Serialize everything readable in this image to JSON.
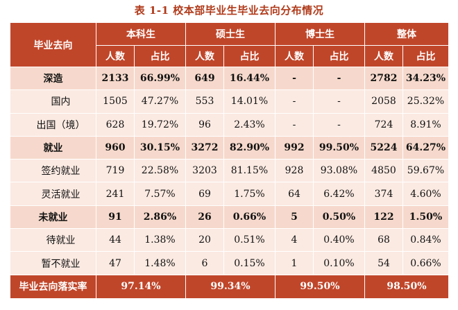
{
  "caption": "表 1-1 校本部毕业生毕业去向分布情况",
  "header": {
    "row_label": "毕业去向",
    "groups": [
      "本科生",
      "硕士生",
      "博士生",
      "整体"
    ],
    "sub": [
      "人数",
      "占比"
    ]
  },
  "rows": [
    {
      "label": "深造",
      "level": "major",
      "values": [
        "2133",
        "66.99%",
        "649",
        "16.44%",
        "-",
        "-",
        "2782",
        "34.23%"
      ]
    },
    {
      "label": "国内",
      "level": "minor",
      "values": [
        "1505",
        "47.27%",
        "553",
        "14.01%",
        "-",
        "-",
        "2058",
        "25.32%"
      ]
    },
    {
      "label": "出国（境）",
      "level": "minor",
      "values": [
        "628",
        "19.72%",
        "96",
        "2.43%",
        "-",
        "-",
        "724",
        "8.91%"
      ]
    },
    {
      "label": "就业",
      "level": "major",
      "values": [
        "960",
        "30.15%",
        "3272",
        "82.90%",
        "992",
        "99.50%",
        "5224",
        "64.27%"
      ]
    },
    {
      "label": "签约就业",
      "level": "minor",
      "values": [
        "719",
        "22.58%",
        "3203",
        "81.15%",
        "928",
        "93.08%",
        "4850",
        "59.67%"
      ]
    },
    {
      "label": "灵活就业",
      "level": "minor",
      "values": [
        "241",
        "7.57%",
        "69",
        "1.75%",
        "64",
        "6.42%",
        "374",
        "4.60%"
      ]
    },
    {
      "label": "未就业",
      "level": "major",
      "values": [
        "91",
        "2.86%",
        "26",
        "0.66%",
        "5",
        "0.50%",
        "122",
        "1.50%"
      ]
    },
    {
      "label": "待就业",
      "level": "minor",
      "values": [
        "44",
        "1.38%",
        "20",
        "0.51%",
        "4",
        "0.40%",
        "68",
        "0.84%"
      ]
    },
    {
      "label": "暂不就业",
      "level": "minor",
      "values": [
        "47",
        "1.48%",
        "6",
        "0.15%",
        "1",
        "0.10%",
        "54",
        "0.66%"
      ]
    }
  ],
  "footer": {
    "label": "毕业去向落实率",
    "values": [
      "97.14%",
      "99.34%",
      "99.50%",
      "98.50%"
    ]
  },
  "colors": {
    "header_bg": "#c0462a",
    "major_row_bg": "#f6d9cc",
    "minor_row_bg": "#fbeae2",
    "caption": "#b03a1a"
  }
}
